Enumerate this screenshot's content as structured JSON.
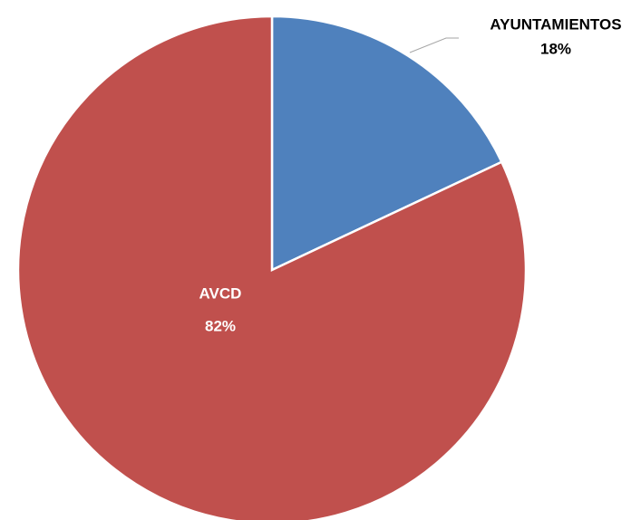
{
  "chart_data": {
    "type": "pie",
    "categories": [
      "AYUNTAMIENTOS",
      "AVCD"
    ],
    "values": [
      18,
      82
    ],
    "value_labels": [
      "18%",
      "82%"
    ],
    "colors": [
      "#4f81bd",
      "#c0504d"
    ]
  }
}
